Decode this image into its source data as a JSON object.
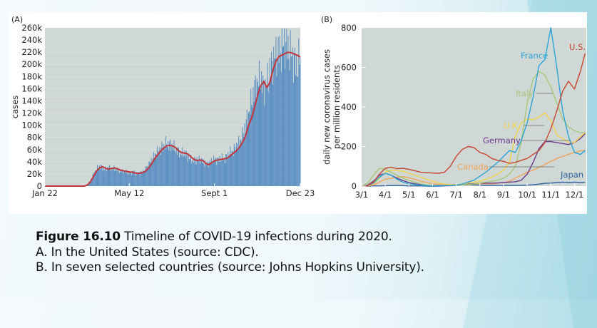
{
  "caption": {
    "figure_number": "Figure 16.10",
    "title": " Timeline of COVID-19 infections during 2020.",
    "line_a": "A. In the United States (source: CDC).",
    "line_b": "B. In seven selected countries (source: Johns Hopkins University)."
  },
  "colors": {
    "plot_bg": "#cfd8d4",
    "bars": "#5b8fc2",
    "avg_line": "#c2343c",
    "US": "#c8452f",
    "France": "#2aa3d8",
    "Italy": "#a8c77a",
    "UK": "#f2d34a",
    "Germany": "#6b3a8f",
    "Canada": "#eea25a",
    "Japan": "#2f5f9e",
    "leader": "#6e6e6e"
  },
  "chart_data": [
    {
      "type": "bar",
      "panel_label": "(A)",
      "title": "",
      "xlabel": "",
      "ylabel": "cases",
      "x_unit": "days since Jan 22, 2020",
      "xlim": [
        0,
        336
      ],
      "ylim": [
        0,
        260000
      ],
      "yticks": [
        0,
        20000,
        40000,
        60000,
        80000,
        100000,
        120000,
        140000,
        160000,
        180000,
        200000,
        220000,
        240000,
        260000
      ],
      "ytick_labels": [
        "0",
        "20k",
        "40k",
        "60k",
        "80k",
        "100k",
        "120k",
        "140k",
        "160k",
        "180k",
        "200k",
        "220k",
        "240k",
        "260k"
      ],
      "xticks": [
        0,
        111,
        223,
        336
      ],
      "xtick_labels": [
        "Jan 22",
        "May 12",
        "Sept 1",
        "Dec 23"
      ],
      "grid": true,
      "series": [
        {
          "name": "daily cases",
          "kind": "bar",
          "x": [
            56,
            60,
            64,
            68,
            72,
            76,
            80,
            84,
            88,
            92,
            96,
            100,
            104,
            108,
            112,
            116,
            120,
            124,
            128,
            132,
            136,
            140,
            144,
            148,
            152,
            156,
            160,
            164,
            168,
            172,
            176,
            180,
            184,
            188,
            192,
            196,
            200,
            204,
            208,
            212,
            216,
            220,
            224,
            228,
            232,
            236,
            240,
            244,
            248,
            252,
            256,
            260,
            264,
            268,
            272,
            276,
            280,
            284,
            288,
            292,
            296,
            300,
            304,
            308,
            312,
            316,
            320,
            324,
            328,
            332,
            336
          ],
          "values": [
            3000,
            9000,
            20000,
            28000,
            33000,
            30000,
            27000,
            31000,
            28000,
            29000,
            26000,
            24000,
            25000,
            23000,
            21000,
            24000,
            20000,
            22000,
            23000,
            28000,
            34000,
            42000,
            50000,
            56000,
            60000,
            66000,
            70000,
            68000,
            66000,
            60000,
            57000,
            53000,
            55000,
            48000,
            44000,
            42000,
            43000,
            44000,
            40000,
            36000,
            38000,
            42000,
            44000,
            43000,
            46000,
            44000,
            50000,
            55000,
            58000,
            66000,
            72000,
            82000,
            100000,
            118000,
            140000,
            160000,
            172000,
            176000,
            160000,
            168000,
            190000,
            205000,
            215000,
            220000,
            228000,
            236000,
            224000,
            218000,
            206000,
            196000,
            214000
          ]
        },
        {
          "name": "7-day average",
          "kind": "line",
          "x": [
            0,
            52,
            56,
            60,
            64,
            68,
            72,
            76,
            80,
            84,
            88,
            92,
            96,
            100,
            104,
            108,
            112,
            116,
            120,
            124,
            128,
            132,
            136,
            140,
            144,
            148,
            152,
            156,
            160,
            164,
            168,
            172,
            176,
            180,
            184,
            188,
            192,
            196,
            200,
            204,
            208,
            212,
            216,
            220,
            224,
            228,
            232,
            236,
            240,
            244,
            248,
            252,
            256,
            260,
            264,
            268,
            272,
            276,
            280,
            284,
            288,
            292,
            296,
            300,
            304,
            308,
            312,
            316,
            320,
            324,
            328,
            332,
            336
          ],
          "values": [
            0,
            0,
            2000,
            7000,
            16000,
            25000,
            30000,
            32000,
            29000,
            28000,
            29000,
            30000,
            28000,
            26000,
            25000,
            24000,
            23000,
            23000,
            21000,
            21000,
            22000,
            24000,
            29000,
            36000,
            44000,
            51000,
            57000,
            62000,
            66000,
            67000,
            66000,
            63000,
            58000,
            55000,
            54000,
            53000,
            48000,
            44000,
            42000,
            43000,
            42000,
            37000,
            35000,
            39000,
            42000,
            43000,
            44000,
            45000,
            46000,
            50000,
            54000,
            58000,
            64000,
            72000,
            82000,
            100000,
            112000,
            130000,
            150000,
            165000,
            172000,
            162000,
            170000,
            190000,
            205000,
            213000,
            215000,
            218000,
            220000,
            219000,
            217000,
            215000,
            212000
          ]
        }
      ]
    },
    {
      "type": "line",
      "panel_label": "(B)",
      "title": "",
      "xlabel": "",
      "ylabel_lines": [
        "daily new coronavirus cases",
        "per million residents"
      ],
      "x_unit": "months since Mar 1, 2020",
      "xlim": [
        0,
        9.5
      ],
      "ylim": [
        0,
        800
      ],
      "yticks": [
        0,
        200,
        400,
        600,
        800
      ],
      "ytick_labels": [
        "0",
        "200",
        "400",
        "600",
        "800"
      ],
      "xticks": [
        0,
        1,
        2,
        3,
        4,
        5,
        6,
        7,
        8,
        9
      ],
      "xtick_labels": [
        "3/1",
        "4/1",
        "5/1",
        "6/1",
        "7/1",
        "8/1",
        "9/1",
        "10/1",
        "11/1",
        "12/1"
      ],
      "grid": false,
      "x": [
        0,
        0.25,
        0.5,
        0.75,
        1,
        1.25,
        1.5,
        1.75,
        2,
        2.25,
        2.5,
        2.75,
        3,
        3.25,
        3.5,
        3.75,
        4,
        4.25,
        4.5,
        4.75,
        5,
        5.25,
        5.5,
        5.75,
        6,
        6.25,
        6.5,
        6.75,
        7,
        7.25,
        7.5,
        7.75,
        8,
        8.25,
        8.5,
        8.75,
        9,
        9.25,
        9.45
      ],
      "series": [
        {
          "name": "U.S.",
          "label": "U.S.",
          "color_key": "US",
          "values": [
            0,
            2,
            20,
            60,
            90,
            95,
            88,
            90,
            85,
            78,
            70,
            68,
            66,
            65,
            70,
            100,
            150,
            185,
            200,
            195,
            170,
            160,
            140,
            130,
            125,
            115,
            120,
            130,
            140,
            160,
            180,
            220,
            290,
            380,
            480,
            530,
            490,
            580,
            670
          ]
        },
        {
          "name": "France",
          "label": "France",
          "color_key": "France",
          "values": [
            0,
            2,
            15,
            45,
            65,
            55,
            35,
            20,
            12,
            8,
            5,
            3,
            2,
            2,
            3,
            4,
            6,
            10,
            20,
            30,
            50,
            70,
            95,
            120,
            150,
            180,
            170,
            230,
            320,
            450,
            610,
            640,
            800,
            600,
            380,
            250,
            170,
            160,
            180
          ]
        },
        {
          "name": "Italy",
          "label": "Italy",
          "color_key": "Italy",
          "values": [
            0,
            15,
            55,
            90,
            85,
            70,
            55,
            40,
            30,
            20,
            12,
            6,
            4,
            3,
            3,
            4,
            5,
            6,
            8,
            10,
            15,
            20,
            25,
            30,
            40,
            60,
            100,
            220,
            420,
            540,
            580,
            560,
            500,
            420,
            340,
            300,
            280,
            270,
            270
          ]
        },
        {
          "name": "U.K.",
          "label": "U.K.",
          "color_key": "UK",
          "values": [
            0,
            2,
            10,
            40,
            70,
            80,
            78,
            75,
            65,
            55,
            45,
            35,
            25,
            15,
            10,
            8,
            8,
            10,
            15,
            20,
            25,
            35,
            45,
            60,
            80,
            120,
            250,
            320,
            340,
            335,
            350,
            370,
            330,
            260,
            240,
            220,
            220,
            250,
            270
          ]
        },
        {
          "name": "Germany",
          "label": "Germany",
          "color_key": "Germany",
          "values": [
            0,
            5,
            25,
            55,
            65,
            55,
            40,
            28,
            18,
            12,
            8,
            5,
            4,
            4,
            4,
            5,
            6,
            8,
            10,
            12,
            14,
            15,
            15,
            16,
            18,
            20,
            22,
            30,
            60,
            120,
            190,
            225,
            225,
            220,
            215,
            210,
            220,
            240,
            265
          ]
        },
        {
          "name": "Canada",
          "label": "Canada",
          "color_key": "Canada",
          "values": [
            0,
            1,
            5,
            20,
            35,
            40,
            45,
            48,
            42,
            35,
            25,
            18,
            12,
            8,
            6,
            6,
            6,
            7,
            8,
            10,
            12,
            12,
            12,
            14,
            18,
            25,
            40,
            55,
            70,
            80,
            95,
            110,
            125,
            140,
            150,
            160,
            170,
            178,
            180
          ]
        },
        {
          "name": "Japan",
          "label": "Japan",
          "color_key": "Japan",
          "values": [
            0,
            0,
            1,
            1,
            2,
            3,
            3,
            2,
            1,
            1,
            1,
            0,
            0,
            0,
            1,
            2,
            4,
            6,
            7,
            6,
            5,
            4,
            4,
            4,
            4,
            4,
            4,
            4,
            5,
            7,
            10,
            14,
            15,
            18,
            20,
            18,
            20,
            18,
            20
          ]
        }
      ]
    }
  ]
}
